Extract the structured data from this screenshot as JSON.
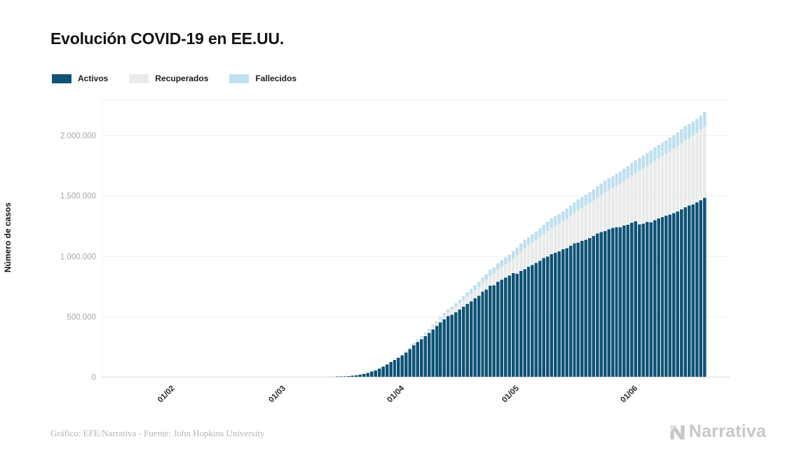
{
  "title": "Evolución COVID-19 en EE.UU.",
  "legend": [
    {
      "label": "Activos",
      "color": "#0e5375"
    },
    {
      "label": "Recuperados",
      "color": "#e9eaea"
    },
    {
      "label": "Fallecidos",
      "color": "#bfe0ef"
    }
  ],
  "footer": {
    "source_text": "Gráfico: EFE/Narrativa - Fuente: John Hopkins University"
  },
  "logo": {
    "text": "Narrativa"
  },
  "chart_data": {
    "type": "bar",
    "stacked": true,
    "title": "Evolución COVID-19 en EE.UU.",
    "xlabel": "",
    "ylabel": "Número de casos",
    "frequency": "daily",
    "data_start_date": "22/01/2020",
    "data_end_date": "18/06/2020",
    "grid": "horizontal",
    "legend_position": "top-left",
    "colors": {
      "background": "#ffffff",
      "gridline": "#efefef",
      "baseline": "#dcdcdc",
      "x_tick_text": "#2a2a2a",
      "y_tick_text": "#a6a6a6"
    },
    "x_axis": {
      "tick_labels": [
        "01/02",
        "01/03",
        "01/04",
        "01/05",
        "01/06"
      ],
      "tick_day_offsets": [
        19,
        48,
        79,
        109,
        140
      ],
      "domain_days": 164,
      "data_start_offset": 9
    },
    "y_axis": {
      "tick_labels": [
        "0",
        "500.000",
        "1.000.000",
        "1.500.000",
        "2.000.000"
      ],
      "tick_values": [
        0,
        500000,
        1000000,
        1500000,
        2000000
      ],
      "max": 2290000
    },
    "series": [
      {
        "name": "Activos",
        "color": "#0e5375",
        "values": [
          1,
          1,
          2,
          2,
          5,
          5,
          5,
          5,
          5,
          7,
          8,
          8,
          11,
          11,
          11,
          11,
          11,
          11,
          11,
          11,
          12,
          12,
          13,
          13,
          13,
          13,
          13,
          13,
          13,
          13,
          15,
          15,
          15,
          51,
          51,
          57,
          58,
          60,
          67,
          74,
          100,
          120,
          150,
          220,
          300,
          400,
          520,
          700,
          930,
          1260,
          1650,
          2140,
          2630,
          3380,
          4430,
          6190,
          8950,
          13370,
          18690,
          25020,
          32700,
          43020,
          53910,
          67110,
          83600,
          102420,
          121860,
          138350,
          155220,
          177330,
          199400,
          227800,
          259500,
          285800,
          310100,
          336300,
          362300,
          390700,
          420000,
          449100,
          474600,
          500400,
          513600,
          534100,
          556000,
          580000,
          604400,
          623100,
          648100,
          670800,
          703500,
          721500,
          753600,
          755300,
          784800,
          804000,
          820500,
          838300,
          858300,
          852900,
          874800,
          891300,
          910400,
          924600,
          943500,
          960900,
          983300,
          994200,
          1014500,
          1025800,
          1036900,
          1054500,
          1062900,
          1085500,
          1104700,
          1110700,
          1124900,
          1134800,
          1147300,
          1164200,
          1184200,
          1198500,
          1206800,
          1220100,
          1232100,
          1237700,
          1237500,
          1251700,
          1257900,
          1274900,
          1286800,
          1261400,
          1267400,
          1280500,
          1279500,
          1297000,
          1309500,
          1322000,
          1332800,
          1343000,
          1354100,
          1369200,
          1386000,
          1402500,
          1416600,
          1425900,
          1443500,
          1462100,
          1480500
        ]
      },
      {
        "name": "Recuperados",
        "color": "#e9eaea",
        "values": [
          0,
          0,
          0,
          0,
          0,
          0,
          0,
          0,
          0,
          0,
          0,
          0,
          0,
          0,
          0,
          0,
          0,
          0,
          0,
          0,
          0,
          0,
          0,
          0,
          0,
          0,
          0,
          0,
          0,
          0,
          0,
          0,
          0,
          0,
          0,
          0,
          0,
          0,
          0,
          0,
          0,
          0,
          0,
          0,
          0,
          0,
          0,
          0,
          0,
          0,
          0,
          0,
          0,
          50,
          80,
          100,
          110,
          120,
          150,
          160,
          180,
          230,
          280,
          350,
          600,
          700,
          870,
          2700,
          5600,
          7000,
          8900,
          9700,
          10400,
          14700,
          17400,
          19600,
          21800,
          23600,
          25400,
          28800,
          31300,
          32900,
          43500,
          47800,
          52100,
          54700,
          58500,
          64800,
          70300,
          71000,
          75200,
          81000,
          84100,
          99100,
          100400,
          106900,
          111400,
          115900,
          120700,
          153900,
          164000,
          175400,
          180200,
          187200,
          189900,
          195000,
          198000,
          212500,
          216200,
          224000,
          230300,
          232700,
          243400,
          246400,
          250700,
          268400,
          272300,
          283200,
          289400,
          294300,
          298400,
          306400,
          318900,
          325400,
          332000,
          344000,
          361200,
          368500,
          384900,
          391500,
          399000,
          444800,
          458200,
          463900,
          485000,
          491700,
          500800,
          506400,
          512600,
          524900,
          533500,
          540300,
          547400,
          556600,
          561800,
          572000,
          577300,
          583500,
          592200
        ]
      },
      {
        "name": "Fallecidos",
        "color": "#bfe0ef",
        "values": [
          0,
          0,
          0,
          0,
          0,
          0,
          0,
          0,
          0,
          0,
          0,
          0,
          0,
          0,
          0,
          0,
          0,
          0,
          0,
          0,
          0,
          0,
          0,
          0,
          0,
          0,
          0,
          0,
          0,
          0,
          0,
          0,
          0,
          0,
          0,
          0,
          0,
          0,
          1,
          1,
          1,
          6,
          11,
          12,
          14,
          17,
          21,
          24,
          30,
          38,
          47,
          58,
          65,
          68,
          86,
          109,
          141,
          210,
          260,
          320,
          420,
          550,
          710,
          940,
          1200,
          1580,
          1970,
          2450,
          2980,
          3870,
          5100,
          6000,
          7100,
          8400,
          9600,
          10800,
          12900,
          14800,
          16700,
          18600,
          20500,
          22000,
          23500,
          25800,
          28300,
          32900,
          36800,
          38700,
          40700,
          42500,
          45100,
          46600,
          49000,
          51000,
          53000,
          54900,
          56300,
          58400,
          60900,
          63000,
          65000,
          66400,
          67400,
          68600,
          71000,
          73400,
          75700,
          77200,
          78800,
          79500,
          80700,
          82400,
          84100,
          85900,
          87500,
          88700,
          89600,
          90300,
          91900,
          93400,
          94700,
          96000,
          97000,
          97700,
          98200,
          98900,
          100400,
          101600,
          102800,
          103800,
          104400,
          105100,
          106200,
          107200,
          108200,
          109100,
          109800,
          110500,
          111000,
          112000,
          112900,
          113800,
          114600,
          115400,
          115700,
          116100,
          116900,
          117700,
          118400
        ]
      }
    ]
  }
}
